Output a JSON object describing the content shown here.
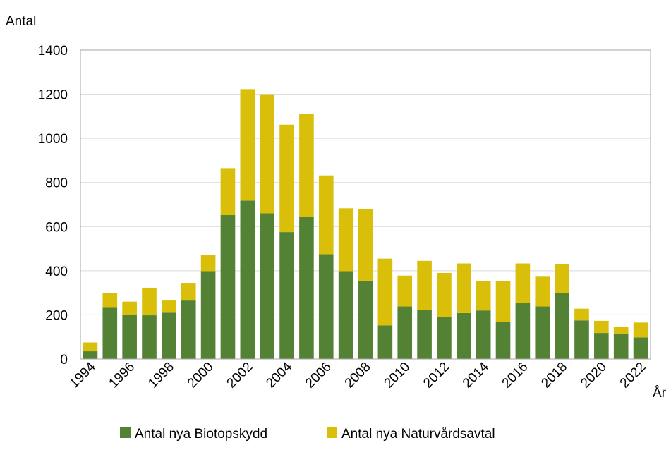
{
  "chart_data": {
    "type": "bar",
    "stacked": true,
    "title": "",
    "ylabel": "Antal",
    "xlabel": "År",
    "ylim": [
      0,
      1400
    ],
    "yticks": [
      0,
      200,
      400,
      600,
      800,
      1000,
      1200,
      1400
    ],
    "grid": true,
    "legend_position": "bottom",
    "categories": [
      "1994",
      "1995",
      "1996",
      "1997",
      "1998",
      "1999",
      "2000",
      "2001",
      "2002",
      "2003",
      "2004",
      "2005",
      "2006",
      "2007",
      "2008",
      "2009",
      "2010",
      "2011",
      "2012",
      "2013",
      "2014",
      "2015",
      "2016",
      "2017",
      "2018",
      "2019",
      "2020",
      "2021",
      "2022"
    ],
    "tick_labels": [
      "1994",
      "1996",
      "1998",
      "2000",
      "2002",
      "2004",
      "2006",
      "2008",
      "2010",
      "2012",
      "2014",
      "2016",
      "2018",
      "2020",
      "2022"
    ],
    "series": [
      {
        "name": "Antal nya Biotopskydd",
        "color": "#548235",
        "values": [
          35,
          235,
          200,
          198,
          210,
          265,
          398,
          652,
          718,
          660,
          575,
          645,
          475,
          398,
          355,
          152,
          238,
          222,
          190,
          208,
          220,
          168,
          255,
          238,
          300,
          175,
          118,
          112,
          98
        ]
      },
      {
        "name": "Antal nya Naturvårdsavtal",
        "color": "#D9BE0A",
        "values": [
          40,
          63,
          60,
          125,
          55,
          80,
          72,
          213,
          505,
          540,
          487,
          465,
          357,
          285,
          325,
          303,
          140,
          223,
          200,
          225,
          132,
          185,
          178,
          135,
          130,
          53,
          55,
          35,
          67
        ]
      }
    ]
  }
}
